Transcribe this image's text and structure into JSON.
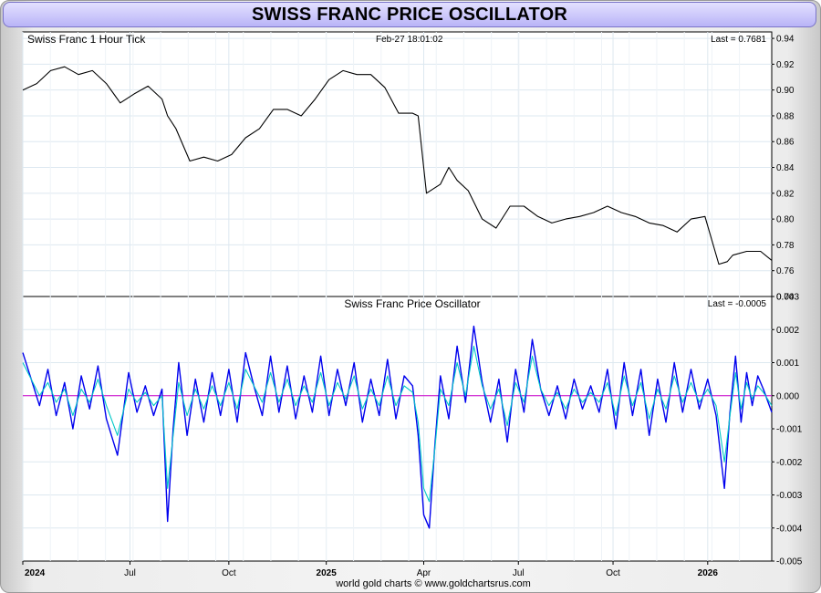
{
  "title": "SWISS FRANC PRICE OSCILLATOR",
  "footer": "world gold charts © www.goldchartsrus.com",
  "chart_data": [
    {
      "type": "line",
      "title": "Swiss Franc 1 Hour Tick",
      "timestamp": "Feb-27  18:01:02",
      "last_label": "Last = 0.7681",
      "ylim": [
        0.74,
        0.945
      ],
      "yticks": [
        0.74,
        0.76,
        0.78,
        0.8,
        0.82,
        0.84,
        0.86,
        0.88,
        0.9,
        0.92,
        0.94
      ],
      "ytick_labels": [
        "0.74",
        "0.76",
        "0.78",
        "0.80",
        "0.82",
        "0.84",
        "0.86",
        "0.88",
        "0.90",
        "0.92",
        "0.94"
      ],
      "xlim": [
        0,
        26.9
      ],
      "x_unit_note": "x values are months counted from the 2024 gridline",
      "series": [
        {
          "color": "#000000",
          "x": [
            0,
            0.5,
            1.0,
            1.5,
            2.0,
            2.5,
            3.0,
            3.5,
            4.0,
            4.5,
            5.0,
            5.2,
            5.5,
            6.0,
            6.5,
            7.0,
            7.5,
            8.0,
            8.5,
            9.0,
            9.5,
            10.0,
            10.5,
            11.0,
            11.5,
            12.0,
            12.5,
            13.0,
            13.5,
            14.0,
            14.2,
            14.5,
            15.0,
            15.3,
            15.6,
            16.0,
            16.5,
            17.0,
            17.5,
            18.0,
            18.5,
            19.0,
            19.5,
            20.0,
            20.5,
            21.0,
            21.5,
            22.0,
            22.5,
            23.0,
            23.5,
            24.0,
            24.5,
            25.0,
            25.3,
            25.5,
            26.0,
            26.5,
            26.9
          ],
          "values": [
            0.9,
            0.905,
            0.915,
            0.918,
            0.912,
            0.915,
            0.905,
            0.89,
            0.897,
            0.903,
            0.893,
            0.88,
            0.87,
            0.845,
            0.848,
            0.845,
            0.85,
            0.863,
            0.87,
            0.885,
            0.885,
            0.88,
            0.893,
            0.908,
            0.915,
            0.912,
            0.912,
            0.902,
            0.882,
            0.882,
            0.88,
            0.82,
            0.827,
            0.84,
            0.83,
            0.822,
            0.8,
            0.793,
            0.81,
            0.81,
            0.802,
            0.797,
            0.8,
            0.802,
            0.805,
            0.81,
            0.805,
            0.802,
            0.797,
            0.795,
            0.79,
            0.8,
            0.802,
            0.765,
            0.767,
            0.772,
            0.775,
            0.775,
            0.768
          ]
        }
      ]
    },
    {
      "type": "line",
      "title": "Swiss Franc Price Oscillator",
      "last_label": "Last = -0.0005",
      "ylim": [
        -0.005,
        0.003
      ],
      "yticks": [
        -0.005,
        -0.004,
        -0.003,
        -0.002,
        -0.001,
        0.0,
        0.001,
        0.002,
        0.003
      ],
      "ytick_labels": [
        "-0.005",
        "-0.004",
        "-0.003",
        "-0.002",
        "-0.001",
        "0.000",
        "0.001",
        "0.002",
        "0.003"
      ],
      "xlim": [
        0,
        26.9
      ],
      "x_tick_values": [
        0,
        3.85,
        7.4,
        10.9,
        14.4,
        17.8,
        21.2,
        24.6
      ],
      "x_tick_labels": [
        "2024",
        "Jul",
        "Oct",
        "2025",
        "Apr",
        "Jul",
        "Oct",
        "2026"
      ],
      "x_tick_bold": [
        true,
        false,
        false,
        true,
        false,
        false,
        false,
        true
      ],
      "zero_line_color": "#cc00cc",
      "series": [
        {
          "color": "#0000ee",
          "x": [
            0,
            0.3,
            0.6,
            0.9,
            1.2,
            1.5,
            1.8,
            2.1,
            2.4,
            2.7,
            3.0,
            3.4,
            3.8,
            4.1,
            4.4,
            4.7,
            5.0,
            5.2,
            5.4,
            5.6,
            5.9,
            6.2,
            6.5,
            6.8,
            7.1,
            7.4,
            7.7,
            8.0,
            8.3,
            8.6,
            8.9,
            9.2,
            9.5,
            9.8,
            10.1,
            10.4,
            10.7,
            11.0,
            11.3,
            11.6,
            11.9,
            12.2,
            12.5,
            12.8,
            13.1,
            13.4,
            13.7,
            14.0,
            14.2,
            14.4,
            14.6,
            14.8,
            15.0,
            15.3,
            15.6,
            15.9,
            16.2,
            16.5,
            16.8,
            17.1,
            17.4,
            17.7,
            18.0,
            18.3,
            18.6,
            18.9,
            19.2,
            19.5,
            19.8,
            20.1,
            20.4,
            20.7,
            21.0,
            21.3,
            21.6,
            21.9,
            22.2,
            22.5,
            22.8,
            23.1,
            23.4,
            23.7,
            24.0,
            24.3,
            24.6,
            24.9,
            25.2,
            25.4,
            25.6,
            25.8,
            26.0,
            26.2,
            26.4,
            26.6,
            26.9
          ],
          "values": [
            0.0013,
            0.0005,
            -0.0003,
            0.0008,
            -0.0006,
            0.0004,
            -0.001,
            0.0006,
            -0.0004,
            0.0009,
            -0.0007,
            -0.0018,
            0.0007,
            -0.0005,
            0.0003,
            -0.0006,
            0.0002,
            -0.0038,
            -0.001,
            0.001,
            -0.0012,
            0.0005,
            -0.0008,
            0.0007,
            -0.0006,
            0.0008,
            -0.0008,
            0.0013,
            0.0003,
            -0.0006,
            0.0012,
            -0.0005,
            0.0009,
            -0.0007,
            0.0006,
            -0.0005,
            0.0012,
            -0.0006,
            0.0008,
            -0.0003,
            0.001,
            -0.0008,
            0.0005,
            -0.0006,
            0.0011,
            -0.0007,
            0.0006,
            0.0003,
            -0.0012,
            -0.0036,
            -0.004,
            -0.0015,
            0.0006,
            -0.0007,
            0.0015,
            -0.0002,
            0.0021,
            0.0004,
            -0.0008,
            0.0005,
            -0.0014,
            0.0008,
            -0.0005,
            0.0017,
            0.0002,
            -0.0006,
            0.0003,
            -0.0007,
            0.0005,
            -0.0004,
            0.0003,
            -0.0005,
            0.0008,
            -0.001,
            0.001,
            -0.0006,
            0.0008,
            -0.0012,
            0.0005,
            -0.0008,
            0.001,
            -0.0005,
            0.0008,
            -0.0004,
            0.0005,
            -0.0006,
            -0.0028,
            -0.0005,
            0.0012,
            -0.0008,
            0.0007,
            -0.0003,
            0.0006,
            0.0002,
            -0.0005
          ]
        },
        {
          "color": "#00c8c8",
          "x": [
            0,
            0.3,
            0.6,
            0.9,
            1.2,
            1.5,
            1.8,
            2.1,
            2.4,
            2.7,
            3.0,
            3.4,
            3.8,
            4.1,
            4.4,
            4.7,
            5.0,
            5.2,
            5.4,
            5.6,
            5.9,
            6.2,
            6.5,
            6.8,
            7.1,
            7.4,
            7.7,
            8.0,
            8.3,
            8.6,
            8.9,
            9.2,
            9.5,
            9.8,
            10.1,
            10.4,
            10.7,
            11.0,
            11.3,
            11.6,
            11.9,
            12.2,
            12.5,
            12.8,
            13.1,
            13.4,
            13.7,
            14.0,
            14.2,
            14.4,
            14.6,
            14.8,
            15.0,
            15.3,
            15.6,
            15.9,
            16.2,
            16.5,
            16.8,
            17.1,
            17.4,
            17.7,
            18.0,
            18.3,
            18.6,
            18.9,
            19.2,
            19.5,
            19.8,
            20.1,
            20.4,
            20.7,
            21.0,
            21.3,
            21.6,
            21.9,
            22.2,
            22.5,
            22.8,
            23.1,
            23.4,
            23.7,
            24.0,
            24.3,
            24.6,
            24.9,
            25.2,
            25.4,
            25.6,
            25.8,
            26.0,
            26.2,
            26.4,
            26.6,
            26.9
          ],
          "values": [
            0.001,
            0.0005,
            0.0,
            0.0004,
            -0.0002,
            0.0002,
            -0.0006,
            0.0002,
            -0.0002,
            0.0005,
            -0.0003,
            -0.0012,
            0.0002,
            -0.0002,
            0.0001,
            -0.0003,
            0.0,
            -0.0028,
            -0.0012,
            0.0004,
            -0.0006,
            0.0002,
            -0.0004,
            0.0003,
            -0.0003,
            0.0004,
            -0.0004,
            0.0008,
            0.0003,
            -0.0002,
            0.0007,
            -0.0002,
            0.0005,
            -0.0003,
            0.0003,
            -0.0002,
            0.0007,
            -0.0003,
            0.0004,
            -0.0001,
            0.0006,
            -0.0004,
            0.0002,
            -0.0003,
            0.0006,
            -0.0003,
            0.0003,
            0.0001,
            -0.0008,
            -0.0028,
            -0.0032,
            -0.0016,
            0.0002,
            -0.0003,
            0.001,
            0.0,
            0.0015,
            0.0003,
            -0.0004,
            0.0002,
            -0.0009,
            0.0004,
            -0.0002,
            0.0012,
            0.0002,
            -0.0003,
            0.0001,
            -0.0004,
            0.0002,
            -0.0002,
            0.0001,
            -0.0002,
            0.0004,
            -0.0006,
            0.0006,
            -0.0003,
            0.0004,
            -0.0007,
            0.0002,
            -0.0004,
            0.0006,
            -0.0002,
            0.0004,
            -0.0002,
            0.0002,
            -0.0003,
            -0.002,
            -0.0006,
            0.0007,
            -0.0004,
            0.0004,
            -0.0001,
            0.0003,
            0.0001,
            -0.0003
          ]
        }
      ]
    }
  ]
}
